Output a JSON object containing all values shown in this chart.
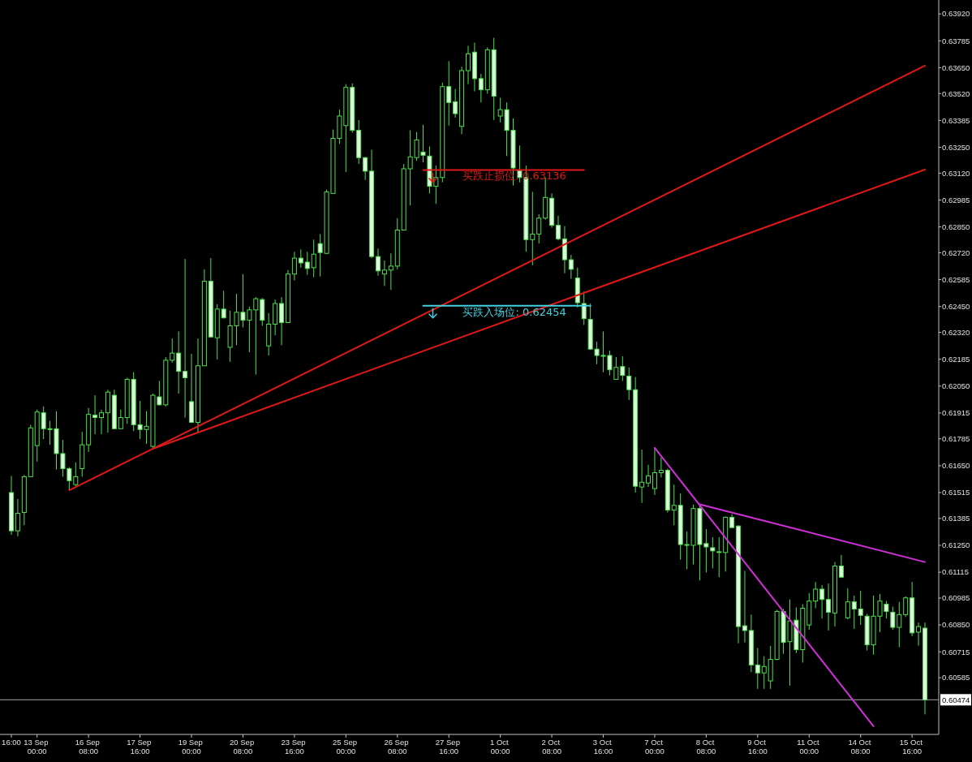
{
  "chart_data": {
    "type": "candlestick",
    "color": "#4ee04e",
    "categories": [
      "16:00",
      null,
      null,
      null,
      "13 Sep 00:00",
      null,
      null,
      null,
      null,
      null,
      null,
      null,
      "16 Sep 08:00",
      null,
      null,
      null,
      null,
      null,
      null,
      null,
      "17 Sep 16:00",
      null,
      null,
      null,
      null,
      null,
      null,
      null,
      "19 Sep 00:00",
      null,
      null,
      null,
      null,
      null,
      null,
      null,
      "20 Sep 08:00",
      null,
      null,
      null,
      null,
      null,
      null,
      null,
      "23 Sep 16:00",
      null,
      null,
      null,
      null,
      null,
      null,
      null,
      "25 Sep 00:00",
      null,
      null,
      null,
      null,
      null,
      null,
      null,
      "26 Sep 08:00",
      null,
      null,
      null,
      null,
      null,
      null,
      null,
      "27 Sep 16:00",
      null,
      null,
      null,
      null,
      null,
      null,
      null,
      "1 Oct 00:00",
      null,
      null,
      null,
      null,
      null,
      null,
      null,
      "2 Oct 08:00",
      null,
      null,
      null,
      null,
      null,
      null,
      null,
      "3 Oct 16:00",
      null,
      null,
      null,
      null,
      null,
      null,
      null,
      "7 Oct 00:00",
      null,
      null,
      null,
      null,
      null,
      null,
      null,
      "8 Oct 08:00",
      null,
      null,
      null,
      null,
      null,
      null,
      null,
      "9 Oct 16:00",
      null,
      null,
      null,
      null,
      null,
      null,
      null,
      "11 Oct 00:00",
      null,
      null,
      null,
      null,
      null,
      null,
      null,
      "14 Oct 08:00",
      null,
      null,
      null,
      null,
      null,
      null,
      null,
      "15 Oct 16:00",
      null,
      null
    ],
    "ohlc": [
      [
        0.61515,
        0.61599,
        0.61303,
        0.61323
      ],
      [
        0.61323,
        0.61483,
        0.61295,
        0.61411
      ],
      [
        0.61415,
        0.61603,
        0.61351,
        0.61595
      ],
      [
        0.61595,
        0.61856,
        0.61595,
        0.6184
      ],
      [
        0.61751,
        0.61932,
        0.61671,
        0.6192
      ],
      [
        0.61916,
        0.61948,
        0.61784,
        0.61836
      ],
      [
        0.61836,
        0.61876,
        0.61755,
        0.61832
      ],
      [
        0.61836,
        0.61924,
        0.61631,
        0.61711
      ],
      [
        0.61711,
        0.6178,
        0.61595,
        0.61635
      ],
      [
        0.61635,
        0.61643,
        0.61527,
        0.61575
      ],
      [
        0.61555,
        0.61667,
        0.61547,
        0.61595
      ],
      [
        0.61635,
        0.6182,
        0.61595,
        0.61755
      ],
      [
        0.61755,
        0.6194,
        0.61719,
        0.61908
      ],
      [
        0.61904,
        0.62004,
        0.61808,
        0.61892
      ],
      [
        0.61892,
        0.61932,
        0.61808,
        0.61916
      ],
      [
        0.61916,
        0.62032,
        0.61816,
        0.6202
      ],
      [
        0.62004,
        0.62032,
        0.61836,
        0.61836
      ],
      [
        0.61836,
        0.61932,
        0.61836,
        0.61892
      ],
      [
        0.61892,
        0.62092,
        0.6186,
        0.62084
      ],
      [
        0.62084,
        0.6212,
        0.61824,
        0.61856
      ],
      [
        0.61856,
        0.61976,
        0.61784,
        0.61832
      ],
      [
        0.61832,
        0.61924,
        0.6176,
        0.61848
      ],
      [
        0.61747,
        0.62012,
        0.6174,
        0.62004
      ],
      [
        0.61996,
        0.62076,
        0.61952,
        0.61956
      ],
      [
        0.61956,
        0.62196,
        0.61948,
        0.6218
      ],
      [
        0.6218,
        0.62289,
        0.62168,
        0.62216
      ],
      [
        0.62216,
        0.62325,
        0.62012,
        0.62124
      ],
      [
        0.62124,
        0.62689,
        0.61892,
        0.62092
      ],
      [
        0.61972,
        0.62212,
        0.61864,
        0.61868
      ],
      [
        0.61868,
        0.62289,
        0.61816,
        0.62152
      ],
      [
        0.62152,
        0.62637,
        0.62152,
        0.62577
      ],
      [
        0.62577,
        0.62693,
        0.62293,
        0.62297
      ],
      [
        0.62293,
        0.62461,
        0.62184,
        0.62437
      ],
      [
        0.62437,
        0.62529,
        0.62389,
        0.62393
      ],
      [
        0.62245,
        0.62429,
        0.62172,
        0.62353
      ],
      [
        0.62353,
        0.62513,
        0.62256,
        0.62421
      ],
      [
        0.62421,
        0.62613,
        0.62345,
        0.62381
      ],
      [
        0.62381,
        0.62449,
        0.6222,
        0.62433
      ],
      [
        0.62433,
        0.62497,
        0.62108,
        0.62489
      ],
      [
        0.62485,
        0.62493,
        0.62353,
        0.62381
      ],
      [
        0.62252,
        0.62417,
        0.62204,
        0.62361
      ],
      [
        0.62361,
        0.62485,
        0.62305,
        0.62465
      ],
      [
        0.62465,
        0.62497,
        0.62256,
        0.62369
      ],
      [
        0.62369,
        0.62633,
        0.62369,
        0.62613
      ],
      [
        0.62613,
        0.62725,
        0.62581,
        0.62693
      ],
      [
        0.62693,
        0.62737,
        0.62645,
        0.62669
      ],
      [
        0.62673,
        0.62725,
        0.62609,
        0.62641
      ],
      [
        0.62645,
        0.62786,
        0.62597,
        0.62713
      ],
      [
        0.62766,
        0.62814,
        0.62601,
        0.62721
      ],
      [
        0.62717,
        0.63038,
        0.62713,
        0.63026
      ],
      [
        0.63018,
        0.63339,
        0.63018,
        0.63295
      ],
      [
        0.63295,
        0.63439,
        0.63267,
        0.63407
      ],
      [
        0.63359,
        0.63567,
        0.63126,
        0.63551
      ],
      [
        0.63551,
        0.63571,
        0.63323,
        0.63335
      ],
      [
        0.63335,
        0.63387,
        0.63166,
        0.63198
      ],
      [
        0.63198,
        0.63202,
        0.63086,
        0.6313
      ],
      [
        0.6313,
        0.63238,
        0.62693,
        0.62701
      ],
      [
        0.62701,
        0.62741,
        0.62605,
        0.62629
      ],
      [
        0.62613,
        0.62681,
        0.62553,
        0.62633
      ],
      [
        0.62633,
        0.62717,
        0.62533,
        0.62653
      ],
      [
        0.62653,
        0.62894,
        0.62637,
        0.62834
      ],
      [
        0.62834,
        0.63166,
        0.62834,
        0.63142
      ],
      [
        0.63142,
        0.63335,
        0.62958,
        0.63202
      ],
      [
        0.63198,
        0.63327,
        0.63182,
        0.63287
      ],
      [
        0.63226,
        0.63363,
        0.63174,
        0.6321
      ],
      [
        0.63206,
        0.63254,
        0.63018,
        0.63054
      ],
      [
        0.63054,
        0.63158,
        0.62966,
        0.63098
      ],
      [
        0.63098,
        0.63575,
        0.63074,
        0.63555
      ],
      [
        0.63555,
        0.63683,
        0.63359,
        0.63475
      ],
      [
        0.63479,
        0.63543,
        0.63399,
        0.63419
      ],
      [
        0.63355,
        0.63655,
        0.63315,
        0.63635
      ],
      [
        0.63635,
        0.6376,
        0.63567,
        0.6372
      ],
      [
        0.63728,
        0.63776,
        0.63531,
        0.63595
      ],
      [
        0.63595,
        0.63619,
        0.63475,
        0.63539
      ],
      [
        0.63539,
        0.63752,
        0.63519,
        0.6374
      ],
      [
        0.6374,
        0.638,
        0.63387,
        0.63507
      ],
      [
        0.63407,
        0.63499,
        0.63375,
        0.63439
      ],
      [
        0.63439,
        0.63475,
        0.63206,
        0.63335
      ],
      [
        0.63335,
        0.63395,
        0.63058,
        0.63146
      ],
      [
        0.63134,
        0.63259,
        0.63074,
        0.63098
      ],
      [
        0.63098,
        0.63158,
        0.62725,
        0.62786
      ],
      [
        0.62786,
        0.63026,
        0.62657,
        0.62814
      ],
      [
        0.62814,
        0.62914,
        0.62766,
        0.62894
      ],
      [
        0.62894,
        0.63098,
        0.62886,
        0.62998
      ],
      [
        0.62994,
        0.63018,
        0.62846,
        0.62858
      ],
      [
        0.62858,
        0.62906,
        0.62782,
        0.6279
      ],
      [
        0.6279,
        0.62854,
        0.62617,
        0.62685
      ],
      [
        0.62685,
        0.62709,
        0.62589,
        0.62637
      ],
      [
        0.62593,
        0.62645,
        0.62445,
        0.62469
      ],
      [
        0.62465,
        0.62525,
        0.62357,
        0.62389
      ],
      [
        0.62385,
        0.62465,
        0.62232,
        0.62236
      ],
      [
        0.62236,
        0.62273,
        0.6216,
        0.62204
      ],
      [
        0.62204,
        0.62325,
        0.6212,
        0.62204
      ],
      [
        0.62204,
        0.62228,
        0.62104,
        0.62132
      ],
      [
        0.62084,
        0.62196,
        0.62084,
        0.62144
      ],
      [
        0.62148,
        0.622,
        0.62076,
        0.62104
      ],
      [
        0.621,
        0.62144,
        0.6198,
        0.62032
      ],
      [
        0.62032,
        0.62096,
        0.61515,
        0.61547
      ],
      [
        0.61543,
        0.61731,
        0.61463,
        0.61567
      ],
      [
        0.61563,
        0.61655,
        0.61543,
        0.61599
      ],
      [
        0.61535,
        0.6174,
        0.61503,
        0.61615
      ],
      [
        0.61615,
        0.61691,
        0.61591,
        0.61627
      ],
      [
        0.61627,
        0.61635,
        0.61415,
        0.61427
      ],
      [
        0.61427,
        0.61555,
        0.61351,
        0.61451
      ],
      [
        0.61451,
        0.61511,
        0.61178,
        0.61254
      ],
      [
        0.61254,
        0.61319,
        0.6113,
        0.6125
      ],
      [
        0.6125,
        0.61455,
        0.61154,
        0.61435
      ],
      [
        0.61435,
        0.61451,
        0.61074,
        0.61254
      ],
      [
        0.61259,
        0.61331,
        0.61114,
        0.61242
      ],
      [
        0.61238,
        0.61291,
        0.61134,
        0.61222
      ],
      [
        0.61218,
        0.61291,
        0.6109,
        0.61218
      ],
      [
        0.61214,
        0.61395,
        0.61118,
        0.61391
      ],
      [
        0.61391,
        0.61407,
        0.61339,
        0.61339
      ],
      [
        0.61347,
        0.61351,
        0.60758,
        0.60842
      ],
      [
        0.60846,
        0.61122,
        0.60762,
        0.60822
      ],
      [
        0.60822,
        0.60902,
        0.60613,
        0.60649
      ],
      [
        0.60649,
        0.60734,
        0.60529,
        0.60609
      ],
      [
        0.60609,
        0.60693,
        0.60529,
        0.60641
      ],
      [
        0.60569,
        0.60745,
        0.60529,
        0.60677
      ],
      [
        0.60677,
        0.60926,
        0.60673,
        0.60918
      ],
      [
        0.60918,
        0.6093,
        0.60705,
        0.60762
      ],
      [
        0.60766,
        0.60978,
        0.60545,
        0.6087
      ],
      [
        0.60874,
        0.60938,
        0.60709,
        0.60726
      ],
      [
        0.60726,
        0.60954,
        0.60661,
        0.60934
      ],
      [
        0.6085,
        0.6101,
        0.60826,
        0.6097
      ],
      [
        0.6097,
        0.61066,
        0.60934,
        0.6103
      ],
      [
        0.6103,
        0.6105,
        0.60882,
        0.60978
      ],
      [
        0.60978,
        0.61058,
        0.60822,
        0.60914
      ],
      [
        0.6091,
        0.61166,
        0.60842,
        0.61146
      ],
      [
        0.61146,
        0.61202,
        0.61086,
        0.6109
      ],
      [
        0.60886,
        0.61034,
        0.60878,
        0.60966
      ],
      [
        0.60966,
        0.60998,
        0.6083,
        0.6093
      ],
      [
        0.6093,
        0.61022,
        0.6085,
        0.60898
      ],
      [
        0.60894,
        0.60906,
        0.60722,
        0.6075
      ],
      [
        0.6075,
        0.60998,
        0.60701,
        0.60894
      ],
      [
        0.60894,
        0.61006,
        0.60814,
        0.6097
      ],
      [
        0.60954,
        0.6097,
        0.60882,
        0.60918
      ],
      [
        0.60914,
        0.60942,
        0.60826,
        0.60838
      ],
      [
        0.60838,
        0.60966,
        0.60738,
        0.60902
      ],
      [
        0.60902,
        0.60994,
        0.6089,
        0.60986
      ],
      [
        0.60986,
        0.61066,
        0.60794,
        0.6081
      ],
      [
        0.60814,
        0.60862,
        0.60746,
        0.60842
      ],
      [
        0.60834,
        0.60862,
        0.60401,
        0.60474
      ]
    ],
    "series": [
      {
        "type": "line",
        "color": "#e01818",
        "values": [
          null,
          null,
          null,
          null,
          null,
          null,
          null,
          null,
          null,
          0.61527,
          null,
          null,
          null,
          null,
          null,
          null,
          null,
          null,
          null,
          null,
          null,
          null,
          null,
          null,
          null,
          null,
          null,
          null,
          null,
          null,
          null,
          null,
          null,
          null,
          null,
          null,
          null,
          null,
          null,
          null,
          null,
          null,
          null,
          null,
          null,
          null,
          null,
          null,
          null,
          null,
          null,
          null,
          null,
          null,
          null,
          null,
          null,
          null,
          null,
          null,
          null,
          null,
          null,
          null,
          null,
          null,
          null,
          null,
          null,
          null,
          null,
          null,
          null,
          null,
          null,
          null,
          null,
          null,
          null,
          null,
          null,
          null,
          null,
          null,
          null,
          null,
          null,
          null,
          null,
          null,
          null,
          null,
          null,
          null,
          null,
          null,
          null,
          null,
          null,
          null,
          null,
          null,
          null,
          null,
          null,
          null,
          null,
          null,
          null,
          null,
          null,
          null,
          null,
          null,
          null,
          null,
          null,
          null,
          null,
          null,
          null,
          null,
          null,
          null,
          null,
          null,
          null,
          null,
          null,
          null,
          null,
          null,
          null,
          null,
          null,
          null,
          null,
          null,
          null,
          null,
          null,
          null,
          0.6366
        ]
      },
      {
        "type": "line",
        "color": "#e01818",
        "values": [
          null,
          null,
          null,
          null,
          null,
          null,
          null,
          null,
          null,
          null,
          null,
          null,
          null,
          null,
          null,
          null,
          null,
          null,
          null,
          null,
          null,
          null,
          0.61735,
          null,
          null,
          null,
          null,
          null,
          null,
          null,
          null,
          null,
          null,
          null,
          null,
          null,
          null,
          null,
          null,
          null,
          null,
          null,
          null,
          null,
          null,
          null,
          null,
          null,
          null,
          null,
          null,
          null,
          null,
          null,
          null,
          null,
          null,
          null,
          null,
          null,
          null,
          null,
          null,
          null,
          null,
          null,
          null,
          null,
          null,
          null,
          null,
          null,
          null,
          null,
          null,
          null,
          null,
          null,
          null,
          null,
          null,
          null,
          null,
          null,
          null,
          null,
          null,
          null,
          null,
          null,
          null,
          null,
          null,
          null,
          null,
          null,
          null,
          null,
          null,
          null,
          null,
          null,
          null,
          null,
          null,
          null,
          null,
          null,
          null,
          null,
          null,
          null,
          null,
          null,
          null,
          null,
          null,
          null,
          null,
          null,
          null,
          null,
          null,
          null,
          null,
          null,
          null,
          null,
          null,
          null,
          null,
          null,
          null,
          null,
          null,
          null,
          null,
          null,
          null,
          null,
          null,
          null,
          0.63138
        ]
      },
      {
        "type": "line",
        "color": "#d030d8",
        "values": [
          null,
          null,
          null,
          null,
          null,
          null,
          null,
          null,
          null,
          null,
          null,
          null,
          null,
          null,
          null,
          null,
          null,
          null,
          null,
          null,
          null,
          null,
          null,
          null,
          null,
          null,
          null,
          null,
          null,
          null,
          null,
          null,
          null,
          null,
          null,
          null,
          null,
          null,
          null,
          null,
          null,
          null,
          null,
          null,
          null,
          null,
          null,
          null,
          null,
          null,
          null,
          null,
          null,
          null,
          null,
          null,
          null,
          null,
          null,
          null,
          null,
          null,
          null,
          null,
          null,
          null,
          null,
          null,
          null,
          null,
          null,
          null,
          null,
          null,
          null,
          null,
          null,
          null,
          null,
          null,
          null,
          null,
          null,
          null,
          null,
          null,
          null,
          null,
          null,
          null,
          null,
          null,
          null,
          null,
          null,
          null,
          null,
          null,
          null,
          null,
          0.6174,
          null,
          null,
          null,
          null,
          null,
          null,
          null,
          null,
          null,
          null,
          null,
          null,
          null,
          null,
          null,
          null,
          null,
          null,
          null,
          null,
          null,
          null,
          null,
          null,
          null,
          null,
          null,
          null,
          null,
          null,
          null,
          null,
          null,
          0.60341,
          null,
          null,
          null,
          null,
          null,
          null,
          null,
          null
        ]
      },
      {
        "type": "line",
        "color": "#d030d8",
        "values": [
          null,
          null,
          null,
          null,
          null,
          null,
          null,
          null,
          null,
          null,
          null,
          null,
          null,
          null,
          null,
          null,
          null,
          null,
          null,
          null,
          null,
          null,
          null,
          null,
          null,
          null,
          null,
          null,
          null,
          null,
          null,
          null,
          null,
          null,
          null,
          null,
          null,
          null,
          null,
          null,
          null,
          null,
          null,
          null,
          null,
          null,
          null,
          null,
          null,
          null,
          null,
          null,
          null,
          null,
          null,
          null,
          null,
          null,
          null,
          null,
          null,
          null,
          null,
          null,
          null,
          null,
          null,
          null,
          null,
          null,
          null,
          null,
          null,
          null,
          null,
          null,
          null,
          null,
          null,
          null,
          null,
          null,
          null,
          null,
          null,
          null,
          null,
          null,
          null,
          null,
          null,
          null,
          null,
          null,
          null,
          null,
          null,
          null,
          null,
          null,
          null,
          null,
          null,
          null,
          null,
          null,
          null,
          0.61456,
          null,
          null,
          null,
          null,
          null,
          null,
          null,
          null,
          null,
          null,
          null,
          null,
          null,
          null,
          null,
          null,
          null,
          null,
          null,
          null,
          null,
          null,
          null,
          null,
          null,
          null,
          null,
          null,
          null,
          null,
          null,
          null,
          null,
          null,
          0.61166
        ]
      },
      {
        "type": "line",
        "name": "买跌止损位: 0.63136",
        "color": "#e01818",
        "values": [
          null,
          null,
          null,
          null,
          null,
          null,
          null,
          null,
          null,
          null,
          null,
          null,
          null,
          null,
          null,
          null,
          null,
          null,
          null,
          null,
          null,
          null,
          null,
          null,
          null,
          null,
          null,
          null,
          null,
          null,
          null,
          null,
          null,
          null,
          null,
          null,
          null,
          null,
          null,
          null,
          null,
          null,
          null,
          null,
          null,
          null,
          null,
          null,
          null,
          null,
          null,
          null,
          null,
          null,
          null,
          null,
          null,
          null,
          null,
          null,
          null,
          null,
          null,
          null,
          0.63136,
          null,
          null,
          null,
          null,
          null,
          null,
          null,
          null,
          null,
          null,
          null,
          null,
          null,
          null,
          null,
          null,
          null,
          null,
          null,
          null,
          null,
          null,
          null,
          null,
          0.63136,
          null,
          null,
          null,
          null,
          null,
          null,
          null,
          null,
          null,
          null,
          null,
          null,
          null,
          null,
          null,
          null,
          null,
          null,
          null,
          null,
          null,
          null,
          null,
          null,
          null,
          null,
          null,
          null,
          null,
          null,
          null,
          null,
          null,
          null,
          null,
          null,
          null,
          null,
          null,
          null,
          null,
          null,
          null,
          null,
          null,
          null,
          null,
          null,
          null,
          null,
          null,
          null,
          null
        ]
      },
      {
        "type": "line",
        "name": "买跌入场位: 0.62454",
        "color": "#40d0e0",
        "values": [
          null,
          null,
          null,
          null,
          null,
          null,
          null,
          null,
          null,
          null,
          null,
          null,
          null,
          null,
          null,
          null,
          null,
          null,
          null,
          null,
          null,
          null,
          null,
          null,
          null,
          null,
          null,
          null,
          null,
          null,
          null,
          null,
          null,
          null,
          null,
          null,
          null,
          null,
          null,
          null,
          null,
          null,
          null,
          null,
          null,
          null,
          null,
          null,
          null,
          null,
          null,
          null,
          null,
          null,
          null,
          null,
          null,
          null,
          null,
          null,
          null,
          null,
          null,
          null,
          0.62454,
          null,
          null,
          null,
          null,
          null,
          null,
          null,
          null,
          null,
          null,
          null,
          null,
          null,
          null,
          null,
          null,
          null,
          null,
          null,
          null,
          null,
          null,
          null,
          null,
          null,
          0.62454,
          null,
          null,
          null,
          null,
          null,
          null,
          null,
          null,
          null,
          null,
          null,
          null,
          null,
          null,
          null,
          null,
          null,
          null,
          null,
          null,
          null,
          null,
          null,
          null,
          null,
          null,
          null,
          null,
          null,
          null,
          null,
          null,
          null,
          null,
          null,
          null,
          null,
          null,
          null,
          null,
          null,
          null,
          null,
          null,
          null,
          null,
          null,
          null,
          null,
          null,
          null,
          null
        ]
      }
    ],
    "ref_lines": [
      {
        "axis": "y",
        "value": 0.60474,
        "label": "0.60474",
        "color": "#a0a0a0"
      }
    ],
    "ylim": [
      0.603,
      0.6399
    ],
    "yticks": [
      {
        "value": 0.6392,
        "label": "0.63920"
      },
      {
        "value": 0.63785,
        "label": "0.63785"
      },
      {
        "value": 0.6365,
        "label": "0.63650"
      },
      {
        "value": 0.6352,
        "label": "0.63520"
      },
      {
        "value": 0.63385,
        "label": "0.63385"
      },
      {
        "value": 0.6325,
        "label": "0.63250"
      },
      {
        "value": 0.6312,
        "label": "0.63120"
      },
      {
        "value": 0.62985,
        "label": "0.62985"
      },
      {
        "value": 0.6285,
        "label": "0.62850"
      },
      {
        "value": 0.6272,
        "label": "0.62720"
      },
      {
        "value": 0.62585,
        "label": "0.62585"
      },
      {
        "value": 0.6245,
        "label": "0.62450"
      },
      {
        "value": 0.6232,
        "label": "0.62320"
      },
      {
        "value": 0.62185,
        "label": "0.62185"
      },
      {
        "value": 0.6205,
        "label": "0.62050"
      },
      {
        "value": 0.61915,
        "label": "0.61915"
      },
      {
        "value": 0.61785,
        "label": "0.61785"
      },
      {
        "value": 0.6165,
        "label": "0.61650"
      },
      {
        "value": 0.61515,
        "label": "0.61515"
      },
      {
        "value": 0.61385,
        "label": "0.61385"
      },
      {
        "value": 0.6125,
        "label": "0.61250"
      },
      {
        "value": 0.61115,
        "label": "0.61115"
      },
      {
        "value": 0.60985,
        "label": "0.60985"
      },
      {
        "value": 0.6085,
        "label": "0.60850"
      },
      {
        "value": 0.60715,
        "label": "0.60715"
      },
      {
        "value": 0.60585,
        "label": "0.60585"
      }
    ]
  }
}
